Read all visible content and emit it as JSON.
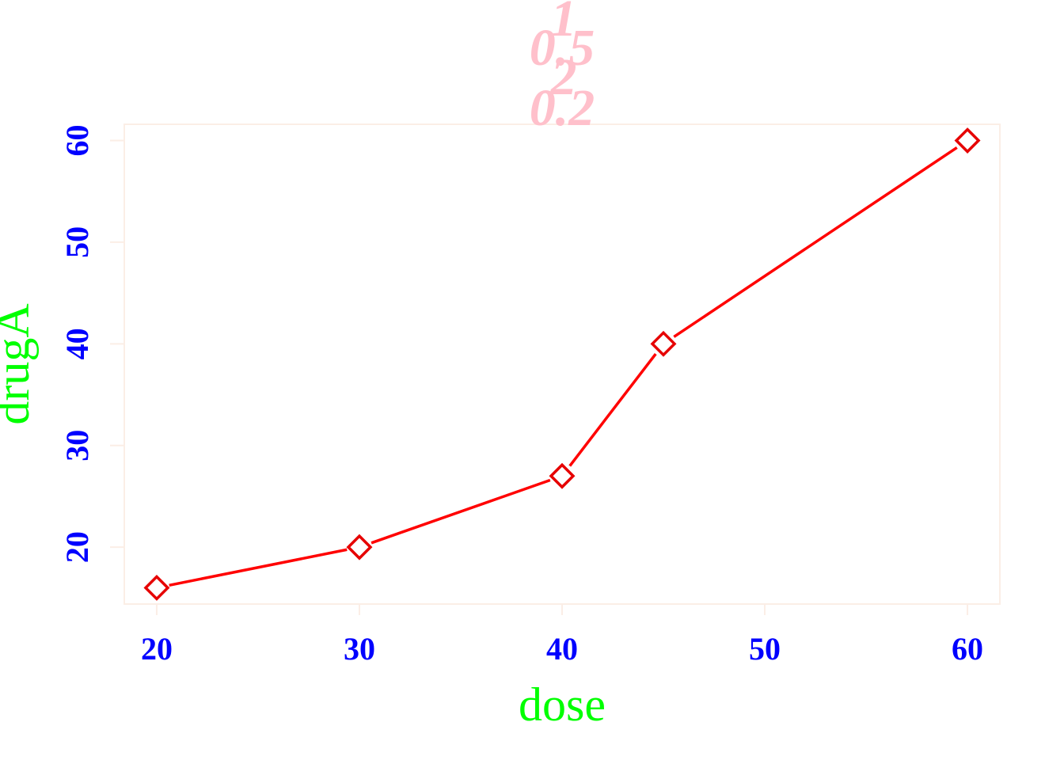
{
  "chart_data": {
    "type": "line",
    "x": [
      20,
      30,
      40,
      45,
      60
    ],
    "series": [
      {
        "values": [
          16,
          20,
          27,
          40,
          60
        ]
      }
    ],
    "xlabel": "dose",
    "ylabel": "drugA",
    "title_lines": [
      "1",
      "0.5",
      "2",
      "0.2"
    ],
    "xticks": [
      "20",
      "30",
      "40",
      "50",
      "60"
    ],
    "yticks": [
      "20",
      "30",
      "40",
      "50",
      "60"
    ],
    "xlim": [
      18.4,
      61.6
    ],
    "ylim": [
      14.4,
      61.6
    ],
    "grid": false,
    "marker": "diamond-open",
    "colors": {
      "line": "#ff0000",
      "markers": "#e60000",
      "ticks": "#0000ff",
      "axis_labels": "#00ff00",
      "title": "#ffc0cb",
      "box": "#fbeee6"
    }
  }
}
